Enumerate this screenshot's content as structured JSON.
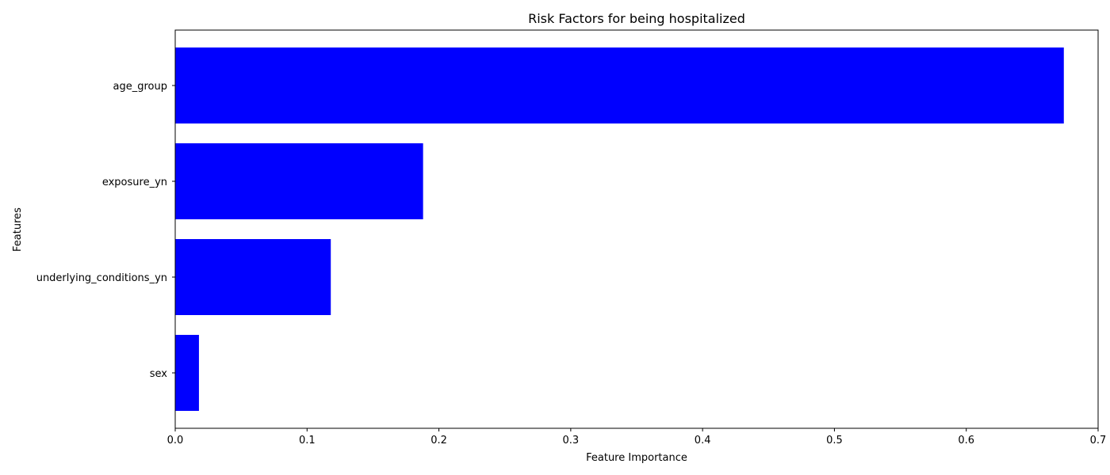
{
  "chart_data": {
    "type": "bar",
    "orientation": "horizontal",
    "title": "Risk Factors for being hospitalized",
    "xlabel": "Feature Importance",
    "ylabel": "Features",
    "categories": [
      "age_group",
      "exposure_yn",
      "underlying_conditions_yn",
      "sex"
    ],
    "values": [
      0.674,
      0.188,
      0.118,
      0.018
    ],
    "xlim": [
      0,
      0.7
    ],
    "x_ticks": [
      "0.0",
      "0.1",
      "0.2",
      "0.3",
      "0.4",
      "0.5",
      "0.6",
      "0.7"
    ],
    "bar_color": "#0000ff",
    "grid": false
  }
}
